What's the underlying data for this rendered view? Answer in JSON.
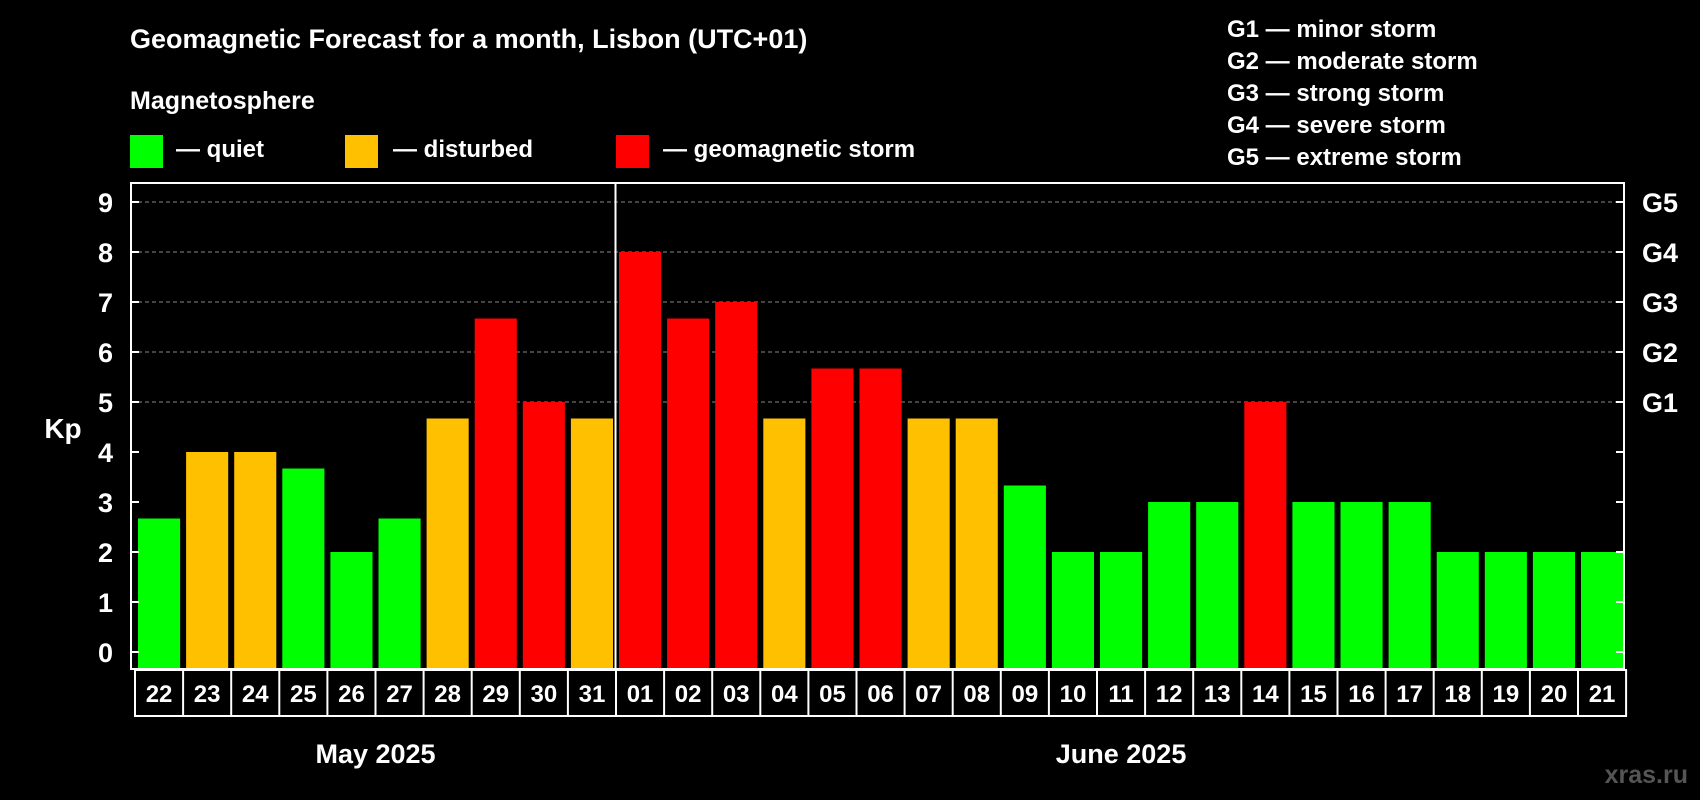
{
  "title": "Geomagnetic Forecast for a month, Lisbon (UTC+01)",
  "legend": {
    "heading": "Magnetosphere",
    "items": [
      {
        "label": "— quiet",
        "color": "#00ff00"
      },
      {
        "label": "— disturbed",
        "color": "#ffc000"
      },
      {
        "label": "— geomagnetic storm",
        "color": "#ff0000"
      }
    ],
    "storm_levels": [
      "G1 — minor storm",
      "G2 — moderate storm",
      "G3 — strong storm",
      "G4 — severe storm",
      "G5 — extreme storm"
    ]
  },
  "watermark": "xras.ru",
  "colors": {
    "quiet": "#00ff00",
    "disturbed": "#ffc000",
    "storm": "#ff0000",
    "grid": "#888888"
  },
  "chart_data": {
    "type": "bar",
    "ylabel": "Kp",
    "ylim": [
      0,
      9
    ],
    "yticks": [
      0,
      1,
      2,
      3,
      4,
      5,
      6,
      7,
      8,
      9
    ],
    "right_axis": [
      {
        "kp": 5,
        "label": "G1"
      },
      {
        "kp": 6,
        "label": "G2"
      },
      {
        "kp": 7,
        "label": "G3"
      },
      {
        "kp": 8,
        "label": "G4"
      },
      {
        "kp": 9,
        "label": "G5"
      }
    ],
    "grid": "horizontal dashed at Kp 5-9",
    "months": [
      {
        "label": "May 2025",
        "start": 0,
        "count": 10
      },
      {
        "label": "June 2025",
        "start": 10,
        "count": 21
      }
    ],
    "categories": [
      "22",
      "23",
      "24",
      "25",
      "26",
      "27",
      "28",
      "29",
      "30",
      "31",
      "01",
      "02",
      "03",
      "04",
      "05",
      "06",
      "07",
      "08",
      "09",
      "10",
      "11",
      "12",
      "13",
      "14",
      "15",
      "16",
      "17",
      "18",
      "19",
      "20",
      "21"
    ],
    "values": [
      2.67,
      4,
      4,
      3.67,
      2,
      2.67,
      4.67,
      6.67,
      5,
      4.67,
      8,
      6.67,
      7,
      4.67,
      5.67,
      5.67,
      4.67,
      4.67,
      3.33,
      2,
      2,
      3,
      3,
      5,
      3,
      3,
      3,
      2,
      2,
      2,
      2
    ],
    "levels": [
      "quiet",
      "disturbed",
      "disturbed",
      "quiet",
      "quiet",
      "quiet",
      "disturbed",
      "storm",
      "storm",
      "disturbed",
      "storm",
      "storm",
      "storm",
      "disturbed",
      "storm",
      "storm",
      "disturbed",
      "disturbed",
      "quiet",
      "quiet",
      "quiet",
      "quiet",
      "quiet",
      "storm",
      "quiet",
      "quiet",
      "quiet",
      "quiet",
      "quiet",
      "quiet",
      "quiet"
    ]
  }
}
